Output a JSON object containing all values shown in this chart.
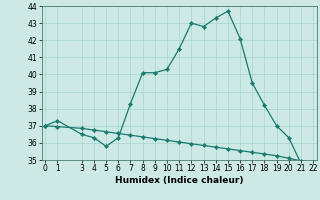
{
  "xlabel": "Humidex (Indice chaleur)",
  "line1_x": [
    0,
    1,
    3,
    4,
    5,
    6,
    7,
    8,
    9,
    10,
    11,
    12,
    13,
    14,
    15,
    16,
    17,
    18,
    19,
    20,
    21,
    22
  ],
  "line1_y": [
    37.0,
    37.3,
    36.5,
    36.3,
    35.8,
    36.3,
    38.3,
    40.1,
    40.1,
    40.3,
    41.5,
    43.0,
    42.8,
    43.3,
    43.7,
    42.1,
    39.5,
    38.2,
    37.0,
    36.3,
    34.8,
    34.7
  ],
  "line2_x": [
    0,
    1,
    3,
    4,
    5,
    6,
    7,
    8,
    9,
    10,
    11,
    12,
    13,
    14,
    15,
    16,
    17,
    18,
    19,
    20,
    21,
    22
  ],
  "line2_y": [
    37.0,
    36.95,
    36.85,
    36.75,
    36.65,
    36.55,
    36.45,
    36.35,
    36.25,
    36.15,
    36.05,
    35.95,
    35.85,
    35.75,
    35.65,
    35.55,
    35.45,
    35.35,
    35.25,
    35.1,
    34.95,
    34.85
  ],
  "color": "#1a7a6e",
  "bg_color": "#cce9e5",
  "grid_color": "#aad4cf",
  "ylim": [
    35,
    44
  ],
  "xlim": [
    -0.3,
    22.3
  ],
  "yticks": [
    35,
    36,
    37,
    38,
    39,
    40,
    41,
    42,
    43,
    44
  ],
  "xticks": [
    0,
    1,
    3,
    4,
    5,
    6,
    7,
    8,
    9,
    10,
    11,
    12,
    13,
    14,
    15,
    16,
    17,
    18,
    19,
    20,
    21,
    22
  ]
}
